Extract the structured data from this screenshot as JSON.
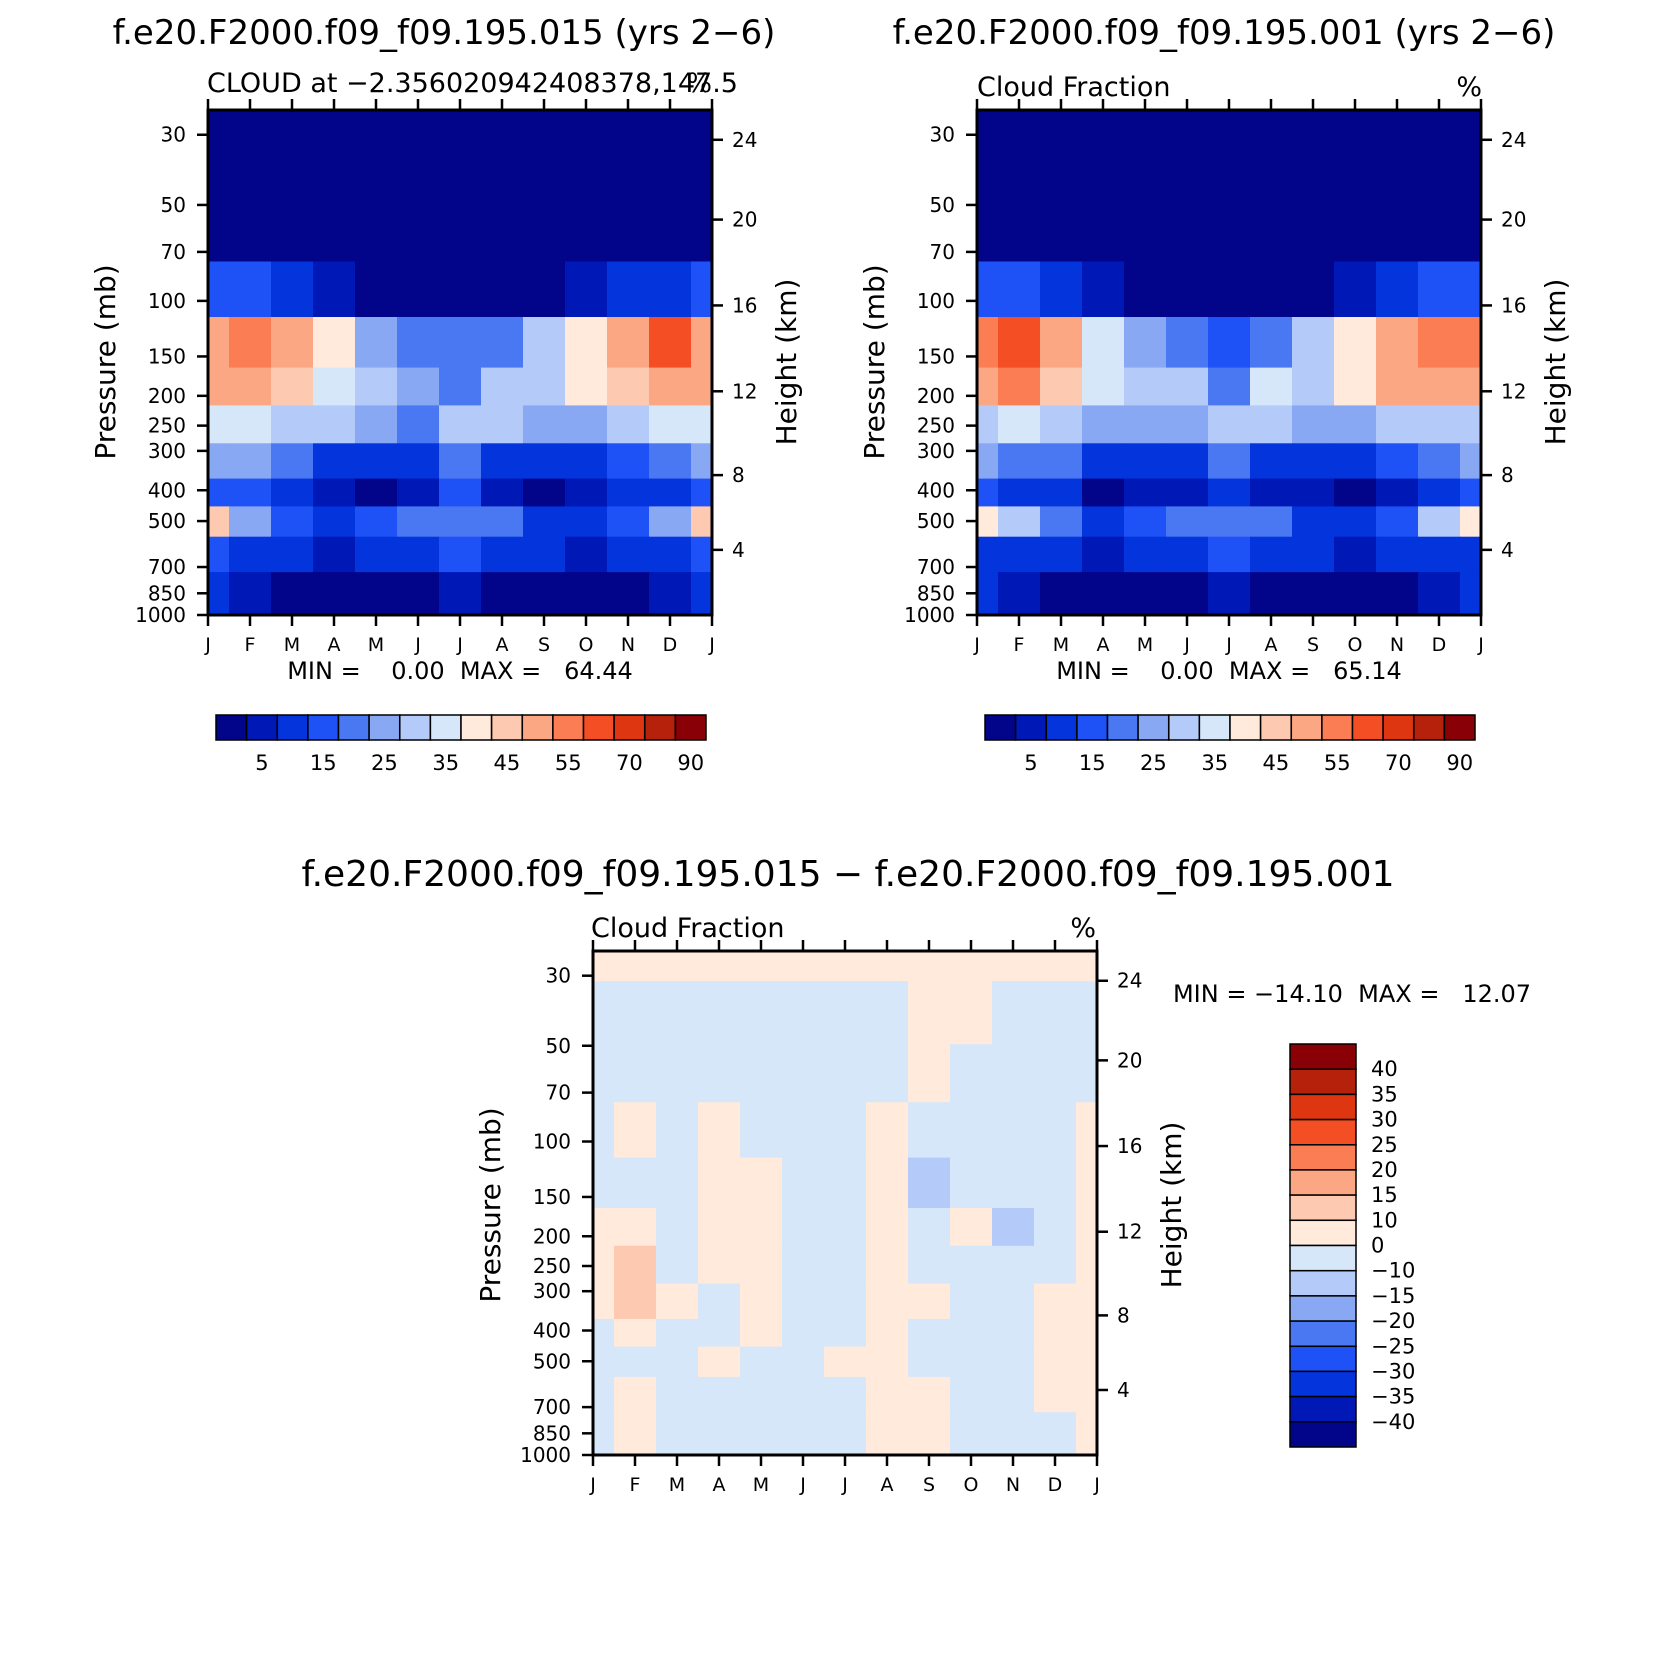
{
  "palettes": {
    "sequential": [
      "#02058a",
      "#0018b6",
      "#0334dc",
      "#1e52f6",
      "#4a78f2",
      "#88a8f4",
      "#b4cbf9",
      "#d6e7fa",
      "#ffeadb",
      "#fdc9b0",
      "#fca783",
      "#fb7d54",
      "#f44e24",
      "#de3611",
      "#b5210a",
      "#890006"
    ],
    "diverging": [
      "#02058a",
      "#0018b6",
      "#0334dc",
      "#1e52f6",
      "#4a78f2",
      "#88a8f4",
      "#b4cbf9",
      "#d6e7fa",
      "#ffeadb",
      "#fdc9b0",
      "#fca783",
      "#fb7d54",
      "#f44e24",
      "#de3611",
      "#b5210a",
      "#890006"
    ]
  },
  "chart_data": [
    {
      "type": "heatmap",
      "title": "f.e20.F2000.f09_f09.195.015 (yrs 2−6)",
      "subtitle_left": "CLOUD at −2.356020942408378,147.5",
      "subtitle_right": "%",
      "xlabel": "",
      "ylabel": "Pressure (mb)",
      "ylabel_right": "Height (km)",
      "x_ticks": [
        "J",
        "F",
        "M",
        "A",
        "M",
        "J",
        "J",
        "A",
        "S",
        "O",
        "N",
        "D",
        "J"
      ],
      "y_ticks": [
        "30",
        "50",
        "70",
        "100",
        "150",
        "200",
        "250",
        "300",
        "400",
        "500",
        "700",
        "850",
        "1000"
      ],
      "y_ticks_right": [
        "24",
        "20",
        "16",
        "12",
        "8",
        "4"
      ],
      "min_max": "MIN =    0.00  MAX =   64.44",
      "colorbar_labels": [
        "5",
        "15",
        "25",
        "35",
        "45",
        "55",
        "70",
        "90"
      ],
      "levels": [
        0,
        5,
        10,
        15,
        20,
        25,
        30,
        35,
        40,
        45,
        50,
        55,
        60,
        70,
        80,
        90
      ],
      "z_grid": [
        [
          0,
          0,
          0,
          0,
          0,
          0,
          0,
          0,
          0,
          0,
          0,
          0,
          0
        ],
        [
          1,
          1,
          1,
          1,
          1,
          1,
          1,
          1,
          1,
          1,
          1,
          1,
          1
        ],
        [
          3,
          3,
          2,
          2,
          1,
          1,
          1,
          1,
          1,
          1,
          2,
          2,
          3
        ],
        [
          15,
          15,
          12,
          8,
          4,
          3,
          2,
          3,
          4,
          6,
          10,
          14,
          15
        ],
        [
          52,
          55,
          50,
          40,
          28,
          24,
          20,
          24,
          30,
          42,
          52,
          60,
          52
        ],
        [
          50,
          53,
          46,
          38,
          32,
          28,
          24,
          30,
          34,
          40,
          48,
          54,
          50
        ],
        [
          38,
          38,
          34,
          30,
          26,
          24,
          30,
          30,
          27,
          28,
          32,
          36,
          38
        ],
        [
          28,
          26,
          22,
          14,
          10,
          12,
          20,
          14,
          10,
          14,
          18,
          24,
          28
        ],
        [
          18,
          16,
          12,
          6,
          4,
          8,
          16,
          8,
          4,
          5,
          10,
          14,
          18
        ],
        [
          46,
          28,
          18,
          14,
          16,
          20,
          24,
          20,
          14,
          12,
          18,
          28,
          46
        ],
        [
          16,
          12,
          10,
          8,
          10,
          14,
          18,
          14,
          10,
          8,
          10,
          14,
          16
        ],
        [
          10,
          6,
          3,
          2,
          2,
          3,
          8,
          3,
          2,
          2,
          3,
          6,
          10
        ],
        [
          10,
          6,
          3,
          2,
          2,
          3,
          8,
          3,
          2,
          2,
          3,
          6,
          10
        ]
      ]
    },
    {
      "type": "heatmap",
      "title": "f.e20.F2000.f09_f09.195.001 (yrs 2−6)",
      "subtitle_left": "Cloud Fraction",
      "subtitle_right": "%",
      "xlabel": "",
      "ylabel": "Pressure (mb)",
      "ylabel_right": "Height (km)",
      "x_ticks": [
        "J",
        "F",
        "M",
        "A",
        "M",
        "J",
        "J",
        "A",
        "S",
        "O",
        "N",
        "D",
        "J"
      ],
      "y_ticks": [
        "30",
        "50",
        "70",
        "100",
        "150",
        "200",
        "250",
        "300",
        "400",
        "500",
        "700",
        "850",
        "1000"
      ],
      "y_ticks_right": [
        "24",
        "20",
        "16",
        "12",
        "8",
        "4"
      ],
      "min_max": "MIN =    0.00  MAX =   65.14",
      "colorbar_labels": [
        "5",
        "15",
        "25",
        "35",
        "45",
        "55",
        "70",
        "90"
      ],
      "levels": [
        0,
        5,
        10,
        15,
        20,
        25,
        30,
        35,
        40,
        45,
        50,
        55,
        60,
        70,
        80,
        90
      ],
      "z_grid": [
        [
          0,
          0,
          0,
          0,
          0,
          0,
          0,
          0,
          0,
          0,
          0,
          0,
          0
        ],
        [
          1,
          1,
          1,
          1,
          1,
          1,
          1,
          1,
          1,
          1,
          1,
          1,
          1
        ],
        [
          3,
          3,
          2,
          2,
          1,
          1,
          1,
          1,
          1,
          1,
          2,
          2,
          3
        ],
        [
          18,
          17,
          14,
          9,
          4,
          3,
          2,
          3,
          4,
          7,
          12,
          15,
          18
        ],
        [
          58,
          62,
          54,
          38,
          28,
          24,
          18,
          24,
          30,
          44,
          52,
          56,
          58
        ],
        [
          54,
          56,
          48,
          36,
          34,
          34,
          24,
          36,
          34,
          42,
          50,
          52,
          54
        ],
        [
          34,
          36,
          32,
          28,
          28,
          28,
          30,
          30,
          28,
          28,
          32,
          34,
          34
        ],
        [
          26,
          24,
          20,
          14,
          12,
          14,
          20,
          14,
          12,
          14,
          18,
          24,
          26
        ],
        [
          16,
          14,
          10,
          4,
          6,
          8,
          14,
          8,
          6,
          4,
          8,
          12,
          16
        ],
        [
          44,
          30,
          20,
          12,
          16,
          22,
          24,
          22,
          14,
          12,
          18,
          30,
          44
        ],
        [
          14,
          12,
          10,
          8,
          10,
          14,
          18,
          14,
          10,
          8,
          10,
          14,
          14
        ],
        [
          10,
          6,
          3,
          2,
          2,
          3,
          8,
          3,
          2,
          2,
          3,
          6,
          10
        ],
        [
          10,
          6,
          3,
          2,
          2,
          3,
          8,
          3,
          2,
          2,
          3,
          6,
          10
        ]
      ]
    },
    {
      "type": "heatmap",
      "title": "f.e20.F2000.f09_f09.195.015 − f.e20.F2000.f09_f09.195.001",
      "subtitle_left": "Cloud Fraction",
      "subtitle_right": "%",
      "xlabel": "",
      "ylabel": "Pressure (mb)",
      "ylabel_right": "Height (km)",
      "x_ticks": [
        "J",
        "F",
        "M",
        "A",
        "M",
        "J",
        "J",
        "A",
        "S",
        "O",
        "N",
        "D",
        "J"
      ],
      "y_ticks": [
        "30",
        "50",
        "70",
        "100",
        "150",
        "200",
        "250",
        "300",
        "400",
        "500",
        "700",
        "850",
        "1000"
      ],
      "y_ticks_right": [
        "24",
        "20",
        "16",
        "12",
        "8",
        "4"
      ],
      "min_max": "MIN = −14.10  MAX =   12.07",
      "colorbar_labels": [
        "40",
        "35",
        "30",
        "25",
        "20",
        "15",
        "10",
        "0",
        "−10",
        "−15",
        "−20",
        "−25",
        "−30",
        "−35",
        "−40"
      ],
      "levels": [
        -1000,
        -40,
        -35,
        -30,
        -25,
        -20,
        -15,
        -10,
        0,
        10,
        15,
        20,
        25,
        30,
        35,
        40
      ],
      "z_grid": [
        [
          2,
          2,
          2,
          2,
          2,
          2,
          2,
          2,
          2,
          2,
          2,
          2,
          2
        ],
        [
          -1,
          -1,
          -1,
          -1,
          -1,
          -1,
          -1,
          -1,
          2,
          2,
          -1,
          -1,
          -1
        ],
        [
          -1,
          -1,
          -1,
          -1,
          -1,
          -1,
          -1,
          -1,
          2,
          -1,
          -1,
          -1,
          -1
        ],
        [
          -1,
          3,
          -1,
          3,
          -1,
          -1,
          -1,
          3,
          -1,
          -1,
          -2,
          -1,
          3
        ],
        [
          -1,
          -1,
          -1,
          3,
          3,
          -1,
          -1,
          3,
          -12,
          -1,
          -1,
          -1,
          3
        ],
        [
          3,
          3,
          -1,
          3,
          3,
          -1,
          -1,
          3,
          -3,
          2,
          -12,
          -1,
          3
        ],
        [
          3,
          11,
          -1,
          3,
          3,
          -1,
          -1,
          3,
          -1,
          -1,
          -1,
          -1,
          3
        ],
        [
          3,
          11,
          3,
          -1,
          3,
          -1,
          -1,
          3,
          3,
          -1,
          -1,
          3,
          3
        ],
        [
          -1,
          3,
          -1,
          -1,
          3,
          -1,
          -1,
          3,
          -1,
          -1,
          -1,
          3,
          3
        ],
        [
          -1,
          -1,
          -1,
          3,
          -1,
          -1,
          3,
          3,
          -1,
          -1,
          -1,
          3,
          3
        ],
        [
          -1,
          3,
          -1,
          -1,
          -1,
          -1,
          -1,
          3,
          3,
          -1,
          -1,
          3,
          3
        ],
        [
          -1,
          3,
          -1,
          -1,
          -1,
          -1,
          -1,
          3,
          3,
          -1,
          -1,
          -1,
          3
        ],
        [
          -1,
          3,
          -1,
          -1,
          -1,
          -1,
          -1,
          3,
          3,
          -1,
          -1,
          -1,
          3
        ]
      ]
    }
  ]
}
